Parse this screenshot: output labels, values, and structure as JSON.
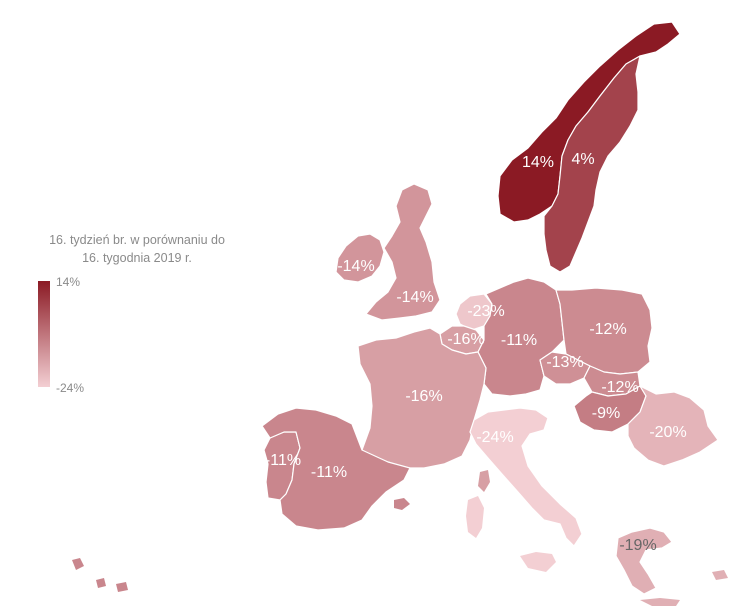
{
  "legend": {
    "title_line1": "16. tydzień br. w porównaniu do",
    "title_line2": "16. tygodnia 2019 r.",
    "max_label": "14%",
    "min_label": "-24%",
    "color_max": "#8b1a24",
    "color_min": "#f3cfd3"
  },
  "colors": {
    "norway": "#8b1a24",
    "sweden": "#a93f4a",
    "mid": "#c86e78",
    "light": "#d9959d",
    "lighter": "#e8b4ba",
    "lightest": "#f3cfd3"
  },
  "countries": [
    {
      "name": "Norway",
      "value": 14,
      "label": "14%"
    },
    {
      "name": "Sweden",
      "value": 4,
      "label": "4%"
    },
    {
      "name": "Ireland",
      "value": -14,
      "label": "-14%"
    },
    {
      "name": "United Kingdom",
      "value": -14,
      "label": "-14%"
    },
    {
      "name": "Netherlands",
      "value": -23,
      "label": "-23%"
    },
    {
      "name": "Belgium",
      "value": -16,
      "label": "-16%"
    },
    {
      "name": "Germany",
      "value": -11,
      "label": "-11%"
    },
    {
      "name": "Poland",
      "value": -12,
      "label": "-12%"
    },
    {
      "name": "Czechia",
      "value": -13,
      "label": "-13%"
    },
    {
      "name": "Slovakia",
      "value": -12,
      "label": "-12%"
    },
    {
      "name": "Hungary",
      "value": -9,
      "label": "-9%"
    },
    {
      "name": "Romania",
      "value": -20,
      "label": "-20%"
    },
    {
      "name": "France",
      "value": -16,
      "label": "-16%"
    },
    {
      "name": "Portugal",
      "value": -11,
      "label": "-11%"
    },
    {
      "name": "Spain",
      "value": -11,
      "label": "-11%"
    },
    {
      "name": "Italy",
      "value": -24,
      "label": "-24%"
    },
    {
      "name": "Greece",
      "value": -19,
      "label": "-19%"
    }
  ]
}
